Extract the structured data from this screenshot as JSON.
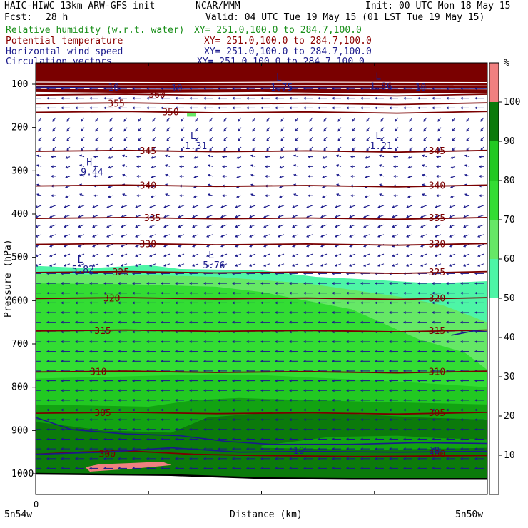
{
  "header": {
    "model": "HAIC-HIWC 13km ARW-GFS init",
    "center": "NCAR/MMM",
    "init": "Init: 00 UTC Mon 18 May 15",
    "fcst_label": "Fcst:",
    "fcst_value": "28 h",
    "valid": "Valid: 04 UTC Tue 19 May 15 (01 LST Tue 19 May 15)",
    "fields": [
      {
        "name": "Relative humidity (w.r.t. water)",
        "xy": "XY= 251.0,100.0 to 284.7,100.0",
        "color": "#1a8f1a"
      },
      {
        "name": "Potential temperature",
        "xy": "XY= 251.0,100.0 to 284.7,100.0",
        "color": "#8b0000"
      },
      {
        "name": "Horizontal wind speed",
        "xy": "XY= 251.0,100.0 to 284.7,100.0",
        "color": "#1a1a8c"
      },
      {
        "name": "Circulation vectors",
        "xy": "XY= 251.0,100.0 to 284.7,100.0",
        "color": "#1a1a8c"
      }
    ]
  },
  "colors": {
    "theta": "#7a0000",
    "wind": "#1a1a8c",
    "rh_50": "#4df5a6",
    "rh_60": "#66e866",
    "rh_70": "#33dd33",
    "rh_80": "#22c922",
    "rh_90": "#12a312",
    "rh_100": "#0b7a0b",
    "supersat": "#f08080",
    "top_band": "#7a0000"
  },
  "chart_data": {
    "type": "cross-section",
    "ylabel": "Pressure (hPa)",
    "xlabel": "Distance (km)",
    "x_start_label": "5n54w",
    "x_end_label": "5n50w",
    "x_zero_label": "0",
    "y_ticks": [
      100,
      200,
      300,
      400,
      500,
      600,
      700,
      800,
      900,
      1000
    ],
    "ylim": [
      1060,
      85
    ],
    "colorbar": {
      "unit": "%",
      "ticks": [
        10,
        20,
        30,
        40,
        50,
        60,
        70,
        80,
        90,
        100
      ],
      "colors": [
        "#ffffff",
        "#ffffff",
        "#ffffff",
        "#ffffff",
        "#ffffff",
        "#4df5a6",
        "#66e866",
        "#33dd33",
        "#22c922",
        "#0b7a0b",
        "#f08080"
      ]
    },
    "theta_contours": [
      {
        "value": 300,
        "label": "300"
      },
      {
        "value": 305,
        "label": "305"
      },
      {
        "value": 310,
        "label": "310"
      },
      {
        "value": 315,
        "label": "315"
      },
      {
        "value": 320,
        "label": "320"
      },
      {
        "value": 325,
        "label": "325"
      },
      {
        "value": 330,
        "label": "330"
      },
      {
        "value": 335,
        "label": "335"
      },
      {
        "value": 340,
        "label": "340"
      },
      {
        "value": 345,
        "label": "345"
      },
      {
        "value": 350,
        "label": "350"
      },
      {
        "value": 355,
        "label": "355"
      },
      {
        "value": 360,
        "label": "360"
      }
    ],
    "wind_labels": [
      "10",
      "10",
      "10",
      "10",
      "10"
    ],
    "extrema": [
      {
        "type": "H",
        "value": "9.44"
      },
      {
        "type": "L",
        "value": "5.82"
      },
      {
        "type": "L",
        "value": "5.76"
      },
      {
        "type": "L",
        "value": "1.31"
      },
      {
        "type": "L",
        "value": "1.21"
      },
      {
        "type": "L",
        "value": "1.75"
      },
      {
        "type": "L",
        "value": "1.86"
      }
    ]
  }
}
